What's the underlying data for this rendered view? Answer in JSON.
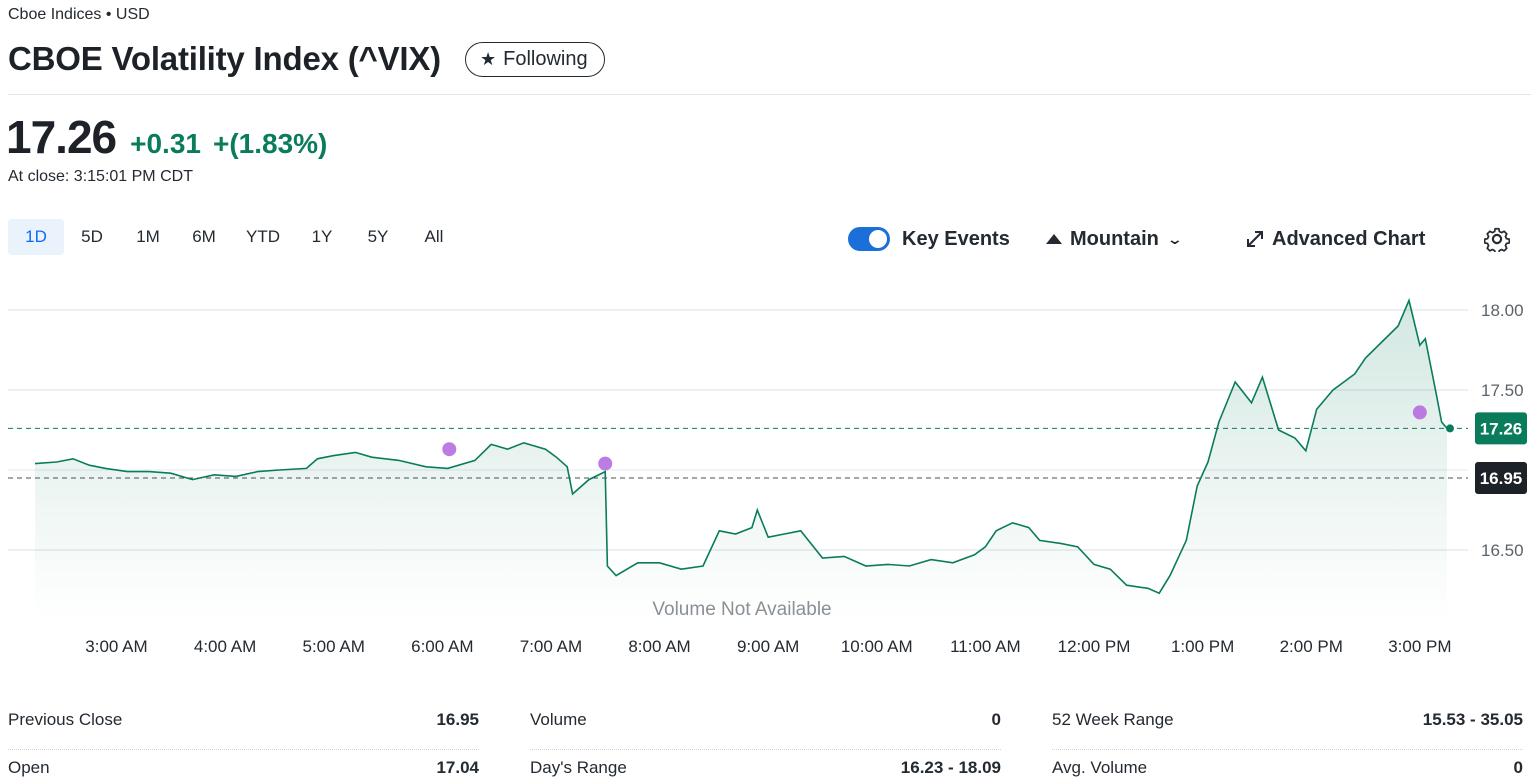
{
  "header": {
    "exchange": "Cboe Indices • USD",
    "title": "CBOE Volatility Index (^VIX)",
    "follow_label": "Following"
  },
  "quote": {
    "price": "17.26",
    "change": "+0.31",
    "change_pct": "+(1.83%)",
    "close_time": "At close: 3:15:01 PM CDT",
    "up_color": "#0a7c5c"
  },
  "ranges": [
    "1D",
    "5D",
    "1M",
    "6M",
    "YTD",
    "1Y",
    "5Y",
    "All"
  ],
  "active_range": "1D",
  "toolbar": {
    "key_events": "Key Events",
    "chart_type": "Mountain",
    "advanced": "Advanced Chart"
  },
  "chart_data": {
    "type": "area",
    "x_ticks": [
      "3:00 AM",
      "4:00 AM",
      "5:00 AM",
      "6:00 AM",
      "7:00 AM",
      "8:00 AM",
      "9:00 AM",
      "10:00 AM",
      "11:00 AM",
      "12:00 PM",
      "1:00 PM",
      "2:00 PM",
      "3:00 PM"
    ],
    "y_ticks": [
      "18.00",
      "17.50",
      "16.50"
    ],
    "y_tick_values": [
      18.0,
      17.5,
      16.5
    ],
    "ylim": [
      16.1,
      18.1
    ],
    "x_range_hours": [
      2.25,
      15.25
    ],
    "current_label": "17.26",
    "previous_close_label": "16.95",
    "current_value": 17.26,
    "previous_close": 16.95,
    "volume_note": "Volume Not Available",
    "event_times": [
      6.0,
      7.5,
      15.0
    ],
    "series": [
      {
        "values": [
          [
            2.25,
            17.04
          ],
          [
            2.45,
            17.05
          ],
          [
            2.6,
            17.07
          ],
          [
            2.75,
            17.03
          ],
          [
            2.9,
            17.01
          ],
          [
            3.1,
            16.99
          ],
          [
            3.3,
            16.99
          ],
          [
            3.5,
            16.98
          ],
          [
            3.7,
            16.94
          ],
          [
            3.9,
            16.97
          ],
          [
            4.1,
            16.96
          ],
          [
            4.3,
            16.99
          ],
          [
            4.5,
            17.0
          ],
          [
            4.75,
            17.01
          ],
          [
            4.85,
            17.07
          ],
          [
            5.0,
            17.09
          ],
          [
            5.2,
            17.11
          ],
          [
            5.35,
            17.08
          ],
          [
            5.6,
            17.06
          ],
          [
            5.85,
            17.02
          ],
          [
            6.05,
            17.01
          ],
          [
            6.3,
            17.06
          ],
          [
            6.45,
            17.16
          ],
          [
            6.6,
            17.13
          ],
          [
            6.75,
            17.17
          ],
          [
            6.95,
            17.13
          ],
          [
            7.05,
            17.08
          ],
          [
            7.15,
            17.02
          ],
          [
            7.2,
            16.85
          ],
          [
            7.35,
            16.94
          ],
          [
            7.5,
            16.99
          ],
          [
            7.52,
            16.4
          ],
          [
            7.6,
            16.34
          ],
          [
            7.8,
            16.42
          ],
          [
            8.0,
            16.42
          ],
          [
            8.2,
            16.38
          ],
          [
            8.4,
            16.4
          ],
          [
            8.55,
            16.62
          ],
          [
            8.7,
            16.6
          ],
          [
            8.85,
            16.64
          ],
          [
            8.9,
            16.75
          ],
          [
            9.0,
            16.58
          ],
          [
            9.15,
            16.6
          ],
          [
            9.3,
            16.62
          ],
          [
            9.5,
            16.45
          ],
          [
            9.7,
            16.46
          ],
          [
            9.9,
            16.4
          ],
          [
            10.1,
            16.41
          ],
          [
            10.3,
            16.4
          ],
          [
            10.5,
            16.44
          ],
          [
            10.7,
            16.42
          ],
          [
            10.9,
            16.47
          ],
          [
            11.0,
            16.52
          ],
          [
            11.1,
            16.62
          ],
          [
            11.25,
            16.67
          ],
          [
            11.4,
            16.64
          ],
          [
            11.5,
            16.56
          ],
          [
            11.7,
            16.54
          ],
          [
            11.85,
            16.52
          ],
          [
            12.0,
            16.41
          ],
          [
            12.15,
            16.38
          ],
          [
            12.3,
            16.28
          ],
          [
            12.5,
            16.26
          ],
          [
            12.6,
            16.23
          ],
          [
            12.7,
            16.34
          ],
          [
            12.85,
            16.56
          ],
          [
            12.95,
            16.9
          ],
          [
            13.05,
            17.05
          ],
          [
            13.15,
            17.3
          ],
          [
            13.3,
            17.55
          ],
          [
            13.45,
            17.42
          ],
          [
            13.55,
            17.58
          ],
          [
            13.7,
            17.25
          ],
          [
            13.85,
            17.2
          ],
          [
            13.95,
            17.12
          ],
          [
            14.05,
            17.38
          ],
          [
            14.2,
            17.5
          ],
          [
            14.4,
            17.6
          ],
          [
            14.5,
            17.7
          ],
          [
            14.65,
            17.8
          ],
          [
            14.8,
            17.9
          ],
          [
            14.9,
            18.06
          ],
          [
            15.0,
            17.78
          ],
          [
            15.05,
            17.82
          ],
          [
            15.15,
            17.48
          ],
          [
            15.2,
            17.3
          ],
          [
            15.25,
            17.26
          ]
        ]
      }
    ]
  },
  "stats": [
    [
      {
        "label": "Previous Close",
        "value": "16.95"
      },
      {
        "label": "Open",
        "value": "17.04"
      }
    ],
    [
      {
        "label": "Volume",
        "value": "0"
      },
      {
        "label": "Day's Range",
        "value": "16.23 - 18.09"
      }
    ],
    [
      {
        "label": "52 Week Range",
        "value": "15.53 - 35.05"
      },
      {
        "label": "Avg. Volume",
        "value": "0"
      }
    ]
  ]
}
